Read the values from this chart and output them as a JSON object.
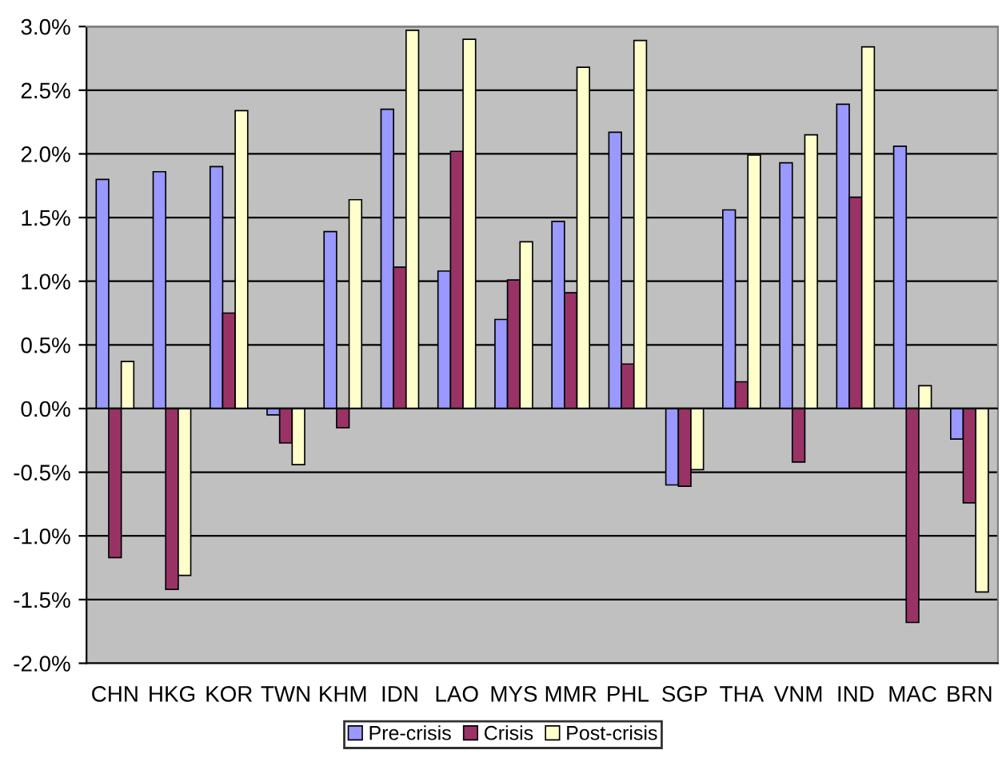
{
  "chart_data": {
    "type": "bar",
    "categories": [
      "CHN",
      "HKG",
      "KOR",
      "TWN",
      "KHM",
      "IDN",
      "LAO",
      "MYS",
      "MMR",
      "PHL",
      "SGP",
      "THA",
      "VNM",
      "IND",
      "MAC",
      "BRN"
    ],
    "series": [
      {
        "name": "Pre-crisis",
        "color": "#9999ff",
        "values": [
          1.8,
          1.86,
          1.9,
          -0.05,
          1.39,
          2.35,
          1.08,
          0.7,
          1.47,
          2.17,
          -0.6,
          1.56,
          1.93,
          2.39,
          2.06,
          -0.24
        ]
      },
      {
        "name": "Crisis",
        "color": "#993366",
        "values": [
          -1.17,
          -1.42,
          0.75,
          -0.27,
          -0.15,
          1.11,
          2.02,
          1.01,
          0.91,
          0.35,
          -0.61,
          0.21,
          -0.42,
          1.66,
          -1.68,
          -0.74
        ]
      },
      {
        "name": "Post-crisis",
        "color": "#ffffcc",
        "values": [
          0.37,
          -1.31,
          2.34,
          -0.44,
          1.64,
          2.97,
          2.9,
          1.31,
          2.68,
          2.89,
          -0.48,
          1.99,
          2.15,
          2.84,
          0.18,
          -1.44
        ]
      }
    ],
    "ylim": [
      -2.0,
      3.0
    ],
    "yticks": [
      {
        "value": -2.0,
        "label": "-2.0%"
      },
      {
        "value": -1.5,
        "label": "-1.5%"
      },
      {
        "value": -1.0,
        "label": "-1.0%"
      },
      {
        "value": -0.5,
        "label": "-0.5%"
      },
      {
        "value": 0.0,
        "label": "0.0%"
      },
      {
        "value": 0.5,
        "label": "0.5%"
      },
      {
        "value": 1.0,
        "label": "1.0%"
      },
      {
        "value": 1.5,
        "label": "1.5%"
      },
      {
        "value": 2.0,
        "label": "2.0%"
      },
      {
        "value": 2.5,
        "label": "2.5%"
      },
      {
        "value": 3.0,
        "label": "3.0%"
      }
    ],
    "grid": "y",
    "legend": "bottom"
  }
}
